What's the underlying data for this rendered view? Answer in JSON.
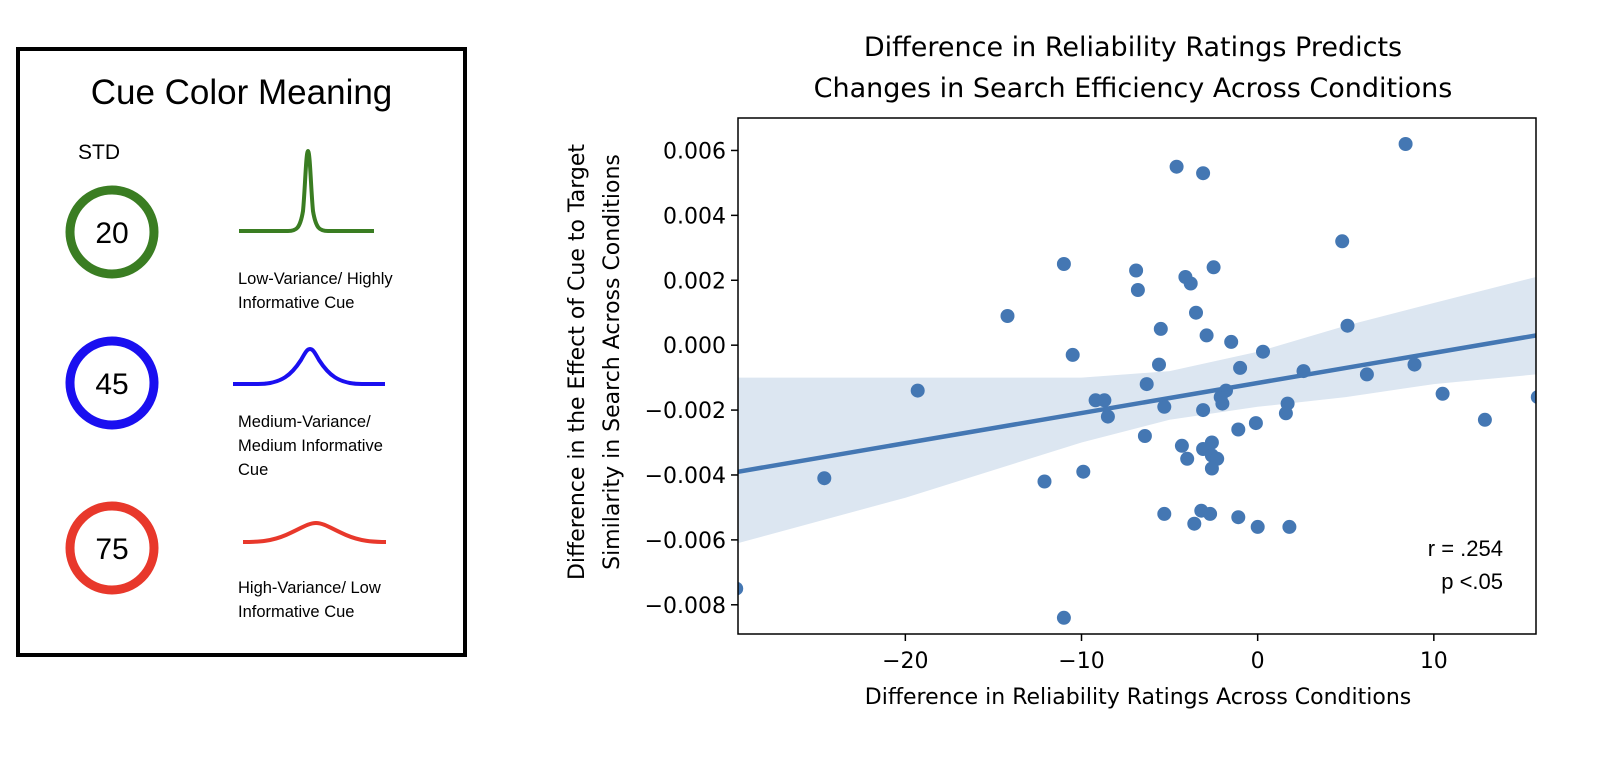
{
  "legend": {
    "title": "Cue Color Meaning",
    "std_label": "STD",
    "cues": [
      {
        "std": "20",
        "color": "#3a7d22",
        "desc_lines": [
          "Low-Variance/ Highly",
          "Informative Cue"
        ]
      },
      {
        "std": "45",
        "color": "#1a0ff0",
        "desc_lines": [
          "Medium-Variance/",
          "Medium Informative",
          "Cue"
        ]
      },
      {
        "std": "75",
        "color": "#e8382b",
        "desc_lines": [
          "High-Variance/ Low",
          "Informative Cue"
        ]
      }
    ]
  },
  "chart_data": {
    "type": "scatter",
    "title_lines": [
      "Difference in Reliability Ratings Predicts",
      "Changes in Search Efficiency Across Conditions"
    ],
    "xlabel": "Difference in Reliability Ratings Across Conditions",
    "ylabel_lines": [
      "Difference in the Effect of Cue to Target",
      "Similarity in Search Across Conditions"
    ],
    "xlim": [
      -29.5,
      15.8
    ],
    "ylim": [
      -0.0089,
      0.007
    ],
    "xticks": [
      -20,
      -10,
      0,
      10
    ],
    "xtick_labels": [
      "−20",
      "−10",
      "0",
      "10"
    ],
    "yticks": [
      0.006,
      0.004,
      0.002,
      0.0,
      -0.002,
      -0.004,
      -0.006,
      -0.008
    ],
    "ytick_labels": [
      "0.006",
      "0.004",
      "0.002",
      "0.000",
      "−0.002",
      "−0.004",
      "−0.006",
      "−0.008"
    ],
    "color": "#4477b3",
    "band_color": "#dce6f1",
    "points": [
      [
        8.4,
        0.0062
      ],
      [
        -4.6,
        0.0055
      ],
      [
        -3.1,
        0.0053
      ],
      [
        4.8,
        0.0032
      ],
      [
        -11.0,
        0.0025
      ],
      [
        -2.5,
        0.0024
      ],
      [
        -6.9,
        0.0023
      ],
      [
        -4.1,
        0.0021
      ],
      [
        -3.8,
        0.0019
      ],
      [
        -6.8,
        0.0017
      ],
      [
        -14.2,
        0.0009
      ],
      [
        -3.5,
        0.001
      ],
      [
        -5.5,
        0.0005
      ],
      [
        5.1,
        0.0006
      ],
      [
        -2.9,
        0.0003
      ],
      [
        -1.5,
        0.0001
      ],
      [
        -10.5,
        -0.0003
      ],
      [
        0.3,
        -0.0002
      ],
      [
        -5.6,
        -0.0006
      ],
      [
        -1.0,
        -0.0007
      ],
      [
        2.6,
        -0.0008
      ],
      [
        6.2,
        -0.0009
      ],
      [
        8.9,
        -0.0006
      ],
      [
        -6.3,
        -0.0012
      ],
      [
        -1.8,
        -0.0014
      ],
      [
        -19.3,
        -0.0014
      ],
      [
        -2.1,
        -0.0016
      ],
      [
        -2.0,
        -0.0018
      ],
      [
        -9.2,
        -0.0017
      ],
      [
        -8.7,
        -0.0017
      ],
      [
        -5.3,
        -0.0019
      ],
      [
        -3.1,
        -0.002
      ],
      [
        1.7,
        -0.0018
      ],
      [
        1.6,
        -0.0021
      ],
      [
        10.5,
        -0.0015
      ],
      [
        15.9,
        -0.0016
      ],
      [
        -8.5,
        -0.0022
      ],
      [
        12.9,
        -0.0023
      ],
      [
        -1.1,
        -0.0026
      ],
      [
        -0.1,
        -0.0024
      ],
      [
        -6.4,
        -0.0028
      ],
      [
        -2.6,
        -0.003
      ],
      [
        -4.3,
        -0.0031
      ],
      [
        -3.1,
        -0.0032
      ],
      [
        -2.6,
        -0.0034
      ],
      [
        -2.3,
        -0.0035
      ],
      [
        -4.0,
        -0.0035
      ],
      [
        -2.6,
        -0.0038
      ],
      [
        -9.9,
        -0.0039
      ],
      [
        -24.6,
        -0.0041
      ],
      [
        -12.1,
        -0.0042
      ],
      [
        -3.2,
        -0.0051
      ],
      [
        -2.7,
        -0.0052
      ],
      [
        -5.3,
        -0.0052
      ],
      [
        -1.1,
        -0.0053
      ],
      [
        -3.6,
        -0.0055
      ],
      [
        0.0,
        -0.0056
      ],
      [
        1.8,
        -0.0056
      ],
      [
        -29.6,
        -0.0075
      ],
      [
        -11.0,
        -0.0084
      ]
    ],
    "regression": [
      [
        -29.5,
        -0.0039
      ],
      [
        15.8,
        0.0003
      ]
    ],
    "ci_band": {
      "x": [
        -29.5,
        -20,
        -10,
        -5,
        0,
        5,
        10,
        15.8
      ],
      "upper": [
        -0.001,
        -0.001,
        -0.001,
        -0.0008,
        -0.0002,
        0.0006,
        0.0013,
        0.0021
      ],
      "lower": [
        -0.0061,
        -0.0047,
        -0.003,
        -0.0023,
        -0.0019,
        -0.0016,
        -0.0012,
        -0.0009
      ]
    },
    "annotation_lines": [
      "r = .254",
      "p <.05"
    ]
  }
}
